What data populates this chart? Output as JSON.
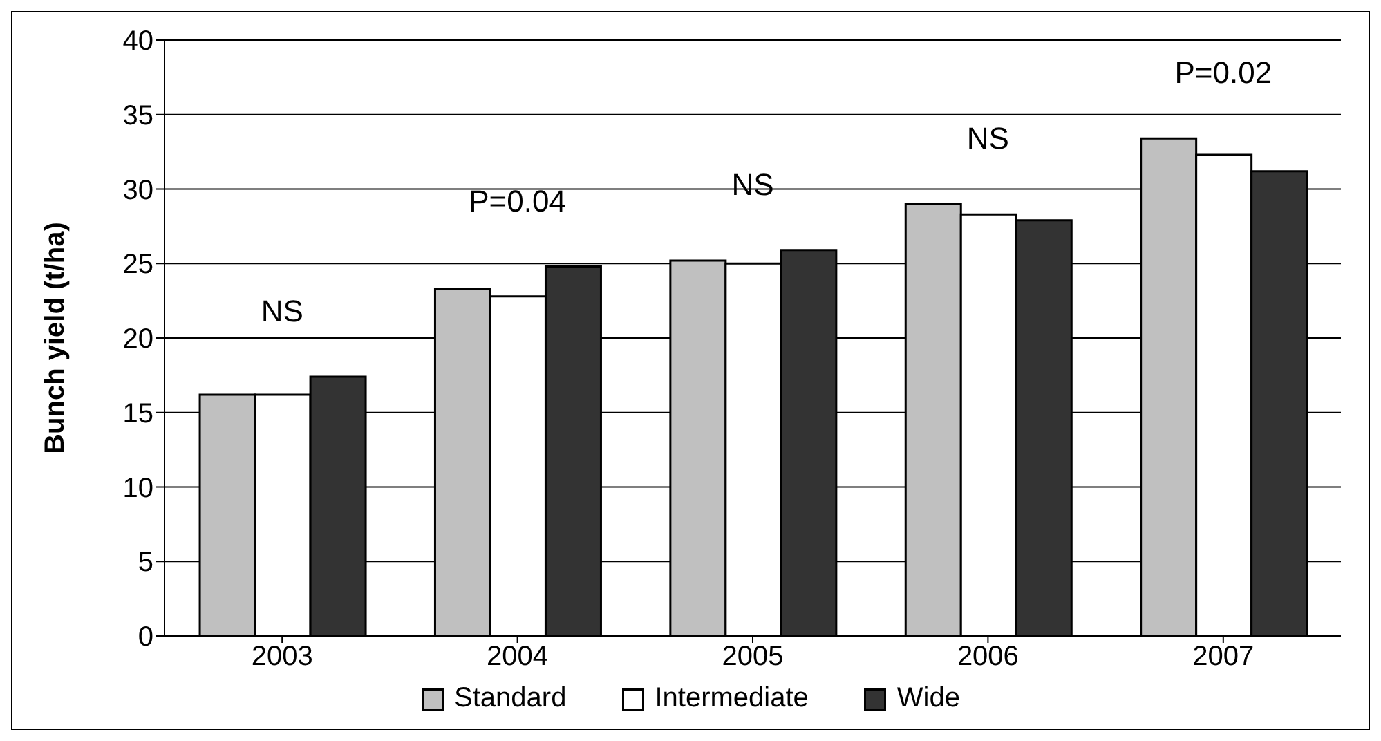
{
  "chart_data": {
    "type": "bar",
    "ylabel": "Bunch yield (t/ha)",
    "categories": [
      "2003",
      "2004",
      "2005",
      "2006",
      "2007"
    ],
    "series": [
      {
        "name": "Standard",
        "color": "#c0c0c0",
        "values": [
          16.2,
          23.3,
          25.2,
          29.0,
          33.4
        ]
      },
      {
        "name": "Intermediate",
        "color": "#ffffff",
        "values": [
          16.2,
          22.8,
          25.0,
          28.3,
          32.3
        ]
      },
      {
        "name": "Wide",
        "color": "#333333",
        "values": [
          17.4,
          24.8,
          25.9,
          27.9,
          31.2
        ]
      }
    ],
    "ylim": [
      0,
      40
    ],
    "yticks": [
      0,
      5,
      10,
      15,
      20,
      25,
      30,
      35,
      40
    ],
    "grid": "y",
    "legend": "bottom",
    "annotations": [
      "NS",
      "P=0.04",
      "NS",
      "NS",
      "P=0.02"
    ]
  }
}
